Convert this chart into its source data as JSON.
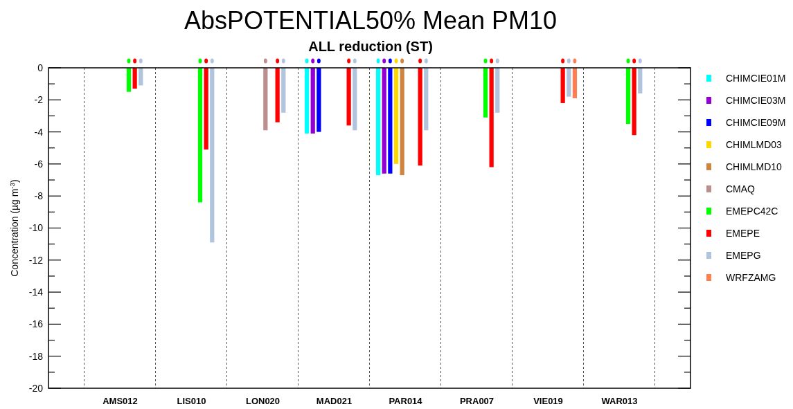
{
  "chart_data": {
    "type": "bar",
    "title": "AbsPOTENTIAL50% Mean PM10",
    "subtitle": "ALL reduction (ST)",
    "ylabel": "Concentration (µg m$^{-3}$)",
    "categories": [
      "AMS012",
      "LIS010",
      "LON020",
      "MAD021",
      "PAR014",
      "PRA007",
      "VIE019",
      "WAR013"
    ],
    "series": [
      {
        "name": "CHIMCIE01M",
        "color": "#00ffff",
        "values": [
          null,
          null,
          null,
          -4.1,
          -6.7,
          null,
          null,
          null
        ]
      },
      {
        "name": "CHIMCIE03M",
        "color": "#9400d3",
        "values": [
          null,
          null,
          null,
          -4.1,
          -6.6,
          null,
          null,
          null
        ]
      },
      {
        "name": "CHIMCIE09M",
        "color": "#0000ff",
        "values": [
          null,
          null,
          null,
          -4.0,
          -6.6,
          null,
          null,
          null
        ]
      },
      {
        "name": "CHIMLMD03",
        "color": "#ffd700",
        "values": [
          null,
          null,
          null,
          null,
          -6.0,
          null,
          null,
          null
        ]
      },
      {
        "name": "CHIMLMD10",
        "color": "#cd853f",
        "values": [
          null,
          null,
          null,
          null,
          -6.7,
          null,
          null,
          null
        ]
      },
      {
        "name": "CMAQ",
        "color": "#bc8f8f",
        "values": [
          null,
          null,
          -3.9,
          null,
          null,
          null,
          null,
          null
        ]
      },
      {
        "name": "EMEPC42C",
        "color": "#00ff00",
        "values": [
          -1.5,
          -8.4,
          null,
          null,
          null,
          -3.1,
          null,
          -3.5
        ]
      },
      {
        "name": "EMEPE",
        "color": "#ff0000",
        "values": [
          -1.3,
          -5.1,
          -3.4,
          -3.6,
          -6.1,
          -6.2,
          -2.2,
          -4.2
        ]
      },
      {
        "name": "EMEPG",
        "color": "#b0c4de",
        "values": [
          -1.1,
          -10.9,
          -2.8,
          -3.9,
          -3.9,
          -2.8,
          -1.8,
          -1.6
        ]
      },
      {
        "name": "WRFZAMG",
        "color": "#ff7f50",
        "values": [
          null,
          null,
          null,
          null,
          null,
          null,
          -1.9,
          null
        ]
      }
    ],
    "ylim": [
      -20,
      0
    ],
    "yticks": [
      -20,
      {
        "value": -19,
        "label": null
      },
      -18,
      {
        "value": -17,
        "label": null
      },
      -16,
      {
        "value": -15,
        "label": null
      },
      -14,
      {
        "value": -13,
        "label": null
      },
      -12,
      {
        "value": -11,
        "label": null
      },
      -10,
      {
        "value": -9,
        "label": null
      },
      -8,
      {
        "value": -7,
        "label": null
      },
      -6,
      {
        "value": -5,
        "label": null
      },
      -4,
      {
        "value": -3,
        "label": null
      },
      -2,
      {
        "value": -1,
        "label": null
      },
      0
    ],
    "grid": "x",
    "legend": "right"
  }
}
